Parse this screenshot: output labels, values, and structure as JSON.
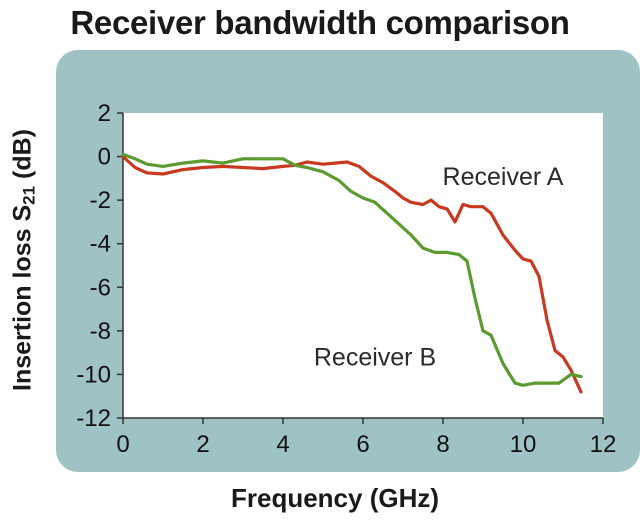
{
  "chart_data": {
    "type": "line",
    "title": "Receiver bandwidth comparison",
    "xlabel": "Frequency (GHz)",
    "ylabel": {
      "main": "Insertion loss S",
      "sub": "21",
      "unit": " (dB)"
    },
    "xlim": [
      0,
      12
    ],
    "ylim": [
      -12,
      2
    ],
    "xticks": [
      "0",
      "2",
      "4",
      "6",
      "8",
      "10",
      "12"
    ],
    "yticks": [
      "2",
      "0",
      "-2",
      "-4",
      "-6",
      "-8",
      "-10",
      "-12"
    ],
    "grid": false,
    "series": [
      {
        "name": "Receiver A",
        "color": "#c8391f",
        "x": [
          0,
          0.3,
          0.6,
          1.0,
          1.5,
          2.0,
          2.5,
          3.0,
          3.5,
          4.0,
          4.3,
          4.6,
          5.0,
          5.3,
          5.6,
          5.9,
          6.2,
          6.5,
          6.8,
          7.0,
          7.2,
          7.5,
          7.7,
          7.9,
          8.1,
          8.3,
          8.5,
          8.7,
          9.0,
          9.2,
          9.5,
          9.8,
          10.0,
          10.2,
          10.4,
          10.6,
          10.8,
          11.0,
          11.2,
          11.45
        ],
        "y": [
          0,
          -0.5,
          -0.75,
          -0.8,
          -0.6,
          -0.5,
          -0.45,
          -0.5,
          -0.55,
          -0.45,
          -0.4,
          -0.25,
          -0.35,
          -0.3,
          -0.25,
          -0.45,
          -0.9,
          -1.2,
          -1.6,
          -1.9,
          -2.1,
          -2.2,
          -2.0,
          -2.3,
          -2.4,
          -3.0,
          -2.2,
          -2.3,
          -2.3,
          -2.6,
          -3.6,
          -4.3,
          -4.7,
          -4.8,
          -5.5,
          -7.5,
          -8.9,
          -9.2,
          -9.8,
          -10.8
        ]
      },
      {
        "name": "Receiver B",
        "color": "#5a9a2e",
        "x": [
          0,
          0.3,
          0.6,
          1.0,
          1.5,
          2.0,
          2.5,
          3.0,
          3.5,
          4.0,
          4.3,
          4.6,
          5.0,
          5.4,
          5.7,
          6.0,
          6.3,
          6.6,
          6.9,
          7.2,
          7.5,
          7.8,
          8.1,
          8.4,
          8.6,
          8.8,
          9.0,
          9.2,
          9.5,
          9.8,
          10.0,
          10.3,
          10.6,
          10.9,
          11.2,
          11.45
        ],
        "y": [
          0.1,
          -0.1,
          -0.35,
          -0.45,
          -0.3,
          -0.2,
          -0.3,
          -0.1,
          -0.1,
          -0.1,
          -0.4,
          -0.5,
          -0.7,
          -1.1,
          -1.6,
          -1.9,
          -2.1,
          -2.6,
          -3.1,
          -3.6,
          -4.2,
          -4.4,
          -4.4,
          -4.5,
          -4.8,
          -6.5,
          -8.0,
          -8.2,
          -9.5,
          -10.4,
          -10.5,
          -10.4,
          -10.4,
          -10.4,
          -10.0,
          -10.1
        ]
      }
    ],
    "annotations": [
      {
        "text": "Receiver A",
        "x": 9.5,
        "y": -1.3
      },
      {
        "text": "Receiver B",
        "x": 6.3,
        "y": -9.6
      }
    ]
  }
}
